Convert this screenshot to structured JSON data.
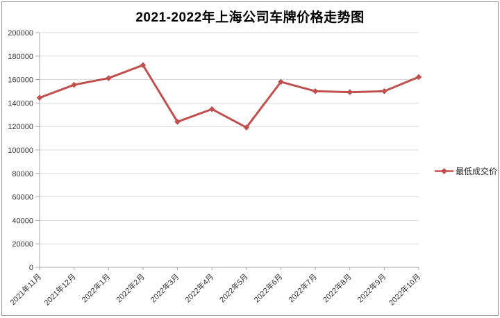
{
  "window": {
    "background": "#ffffff",
    "border_color": "#9a9a9a"
  },
  "chart_data": {
    "type": "line",
    "title": "2021-2022年上海公司车牌价格走势图",
    "categories": [
      "2021年11月",
      "2021年12月",
      "2022年1月",
      "2022年2月",
      "2022年3月",
      "2022年4月",
      "2022年5月",
      "2022年6月",
      "2022年7月",
      "2022年8月",
      "2022年9月",
      "2022年10月"
    ],
    "series": [
      {
        "name": "最低成交价",
        "color": "#c0504d",
        "marker": "diamond",
        "values": [
          144500,
          155500,
          161200,
          172300,
          124000,
          134800,
          119200,
          158000,
          150100,
          149300,
          150100,
          162200
        ]
      }
    ],
    "ylim": [
      0,
      200000
    ],
    "y_tick_step": 20000,
    "y_tick_labels": [
      "0",
      "20000",
      "40000",
      "60000",
      "80000",
      "100000",
      "120000",
      "140000",
      "160000",
      "180000",
      "200000"
    ],
    "xlabel": "",
    "ylabel": "",
    "grid": true,
    "grid_color": "#d9d9d9",
    "axis_color": "#a6a6a6",
    "text_color": "#333333",
    "legend_position": "right"
  }
}
